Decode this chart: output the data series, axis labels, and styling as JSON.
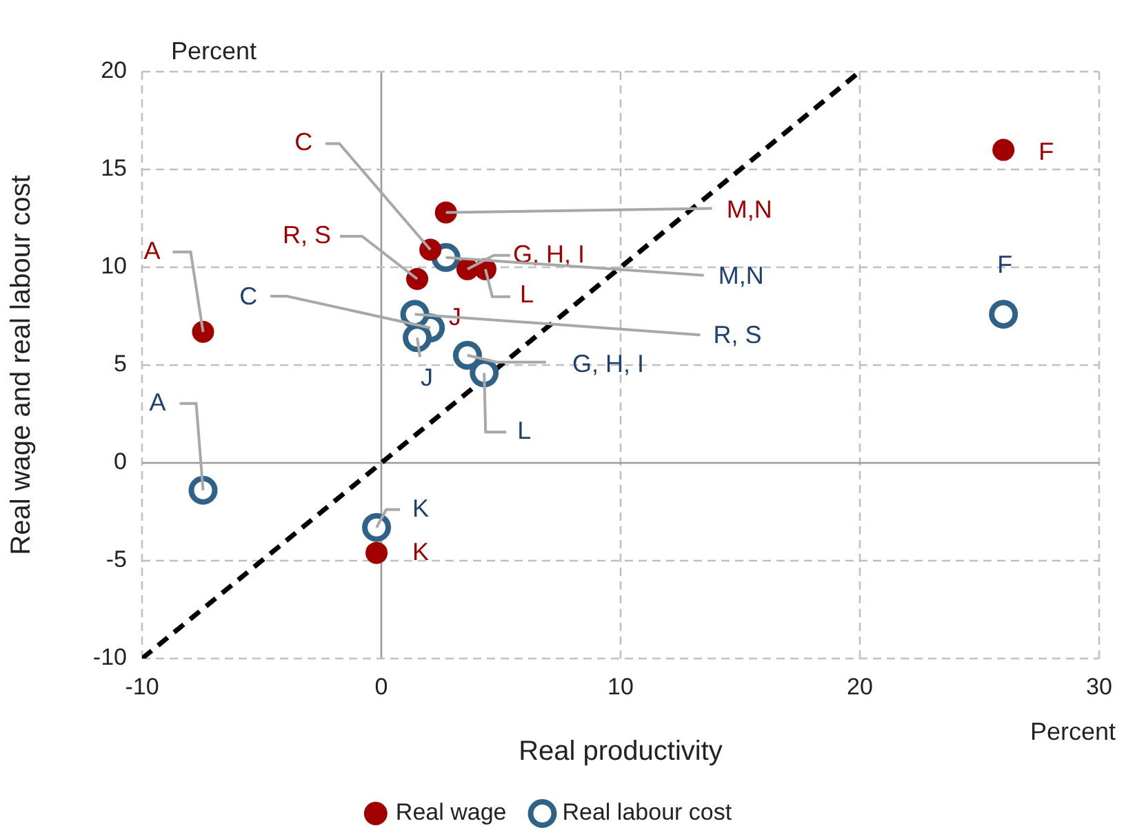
{
  "chart_data": {
    "type": "scatter",
    "xlabel": "Real productivity",
    "ylabel": "Real wage and real labour cost",
    "xlim": [
      -10,
      30
    ],
    "xticks": [
      -10,
      0,
      10,
      20,
      30
    ],
    "ylim": [
      -10,
      20
    ],
    "yticks": [
      -10,
      -5,
      0,
      5,
      10,
      15,
      20
    ],
    "grid": true,
    "legend": "bottom",
    "series": [
      {
        "name": "Real wage",
        "color": "#a00000",
        "marker": "circle",
        "x": [
          -7.45,
          26,
          2.7,
          2.05,
          1.5,
          3.6,
          4.35,
          -0.2
        ],
        "values": [
          6.7,
          16.0,
          12.8,
          10.9,
          9.4,
          9.9,
          9.9,
          -4.6
        ]
      },
      {
        "name": "Real labour cost",
        "color": "#2e6288",
        "marker": "circle",
        "x": [
          -7.45,
          26,
          2.7,
          2.05,
          1.4,
          1.5,
          3.6,
          4.3,
          -0.2
        ],
        "values": [
          -1.4,
          7.6,
          10.5,
          6.9,
          7.6,
          6.4,
          5.5,
          4.6,
          -3.3
        ]
      },
      {
        "type": "line",
        "color": "#000000",
        "line_style": "dashed",
        "marker": "none",
        "x": [
          -10,
          20
        ],
        "values": [
          -10,
          20
        ]
      }
    ],
    "annotations": [
      "Percent",
      "Percent",
      {
        "text": "A",
        "x": -7.45,
        "y": 6.7
      },
      {
        "text": "F",
        "x": 26,
        "y": 16.0
      },
      {
        "text": "M,N",
        "x": 2.7,
        "y": 12.8
      },
      {
        "text": "C",
        "x": 2.05,
        "y": 10.9
      },
      {
        "text": "R, S",
        "x": 1.5,
        "y": 9.4
      },
      {
        "text": "G, H, I",
        "x": 3.6,
        "y": 9.9
      },
      {
        "text": "L",
        "x": 4.35,
        "y": 9.9
      },
      "J",
      {
        "text": "K",
        "x": -0.2,
        "y": -4.6
      },
      {
        "text": "A",
        "x": -7.45,
        "y": -1.4
      },
      {
        "text": "F",
        "x": 26,
        "y": 7.6
      },
      {
        "text": "M,N",
        "x": 2.7,
        "y": 10.5
      },
      {
        "text": "C",
        "x": 2.05,
        "y": 6.9
      },
      {
        "text": "R, S",
        "x": 1.4,
        "y": 7.6
      },
      {
        "text": "J",
        "x": 1.5,
        "y": 6.4
      },
      {
        "text": "G, H, I",
        "x": 3.6,
        "y": 5.5
      },
      {
        "text": "L",
        "x": 4.3,
        "y": 4.6
      },
      {
        "text": "K",
        "x": -0.2,
        "y": -3.3
      }
    ]
  }
}
